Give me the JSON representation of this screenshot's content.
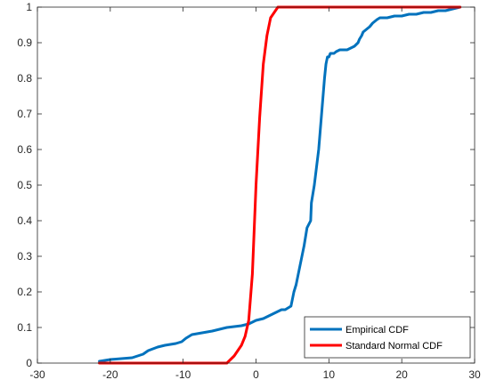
{
  "chart_data": {
    "type": "line",
    "xlim": [
      -30,
      30
    ],
    "ylim": [
      0,
      1
    ],
    "xticks": [
      -30,
      -20,
      -10,
      0,
      10,
      20,
      30
    ],
    "yticks": [
      0,
      0.1,
      0.2,
      0.3,
      0.4,
      0.5,
      0.6,
      0.7,
      0.8,
      0.9,
      1
    ],
    "grid": false,
    "legend_position": "bottom-right",
    "series": [
      {
        "name": "Empirical CDF",
        "color": "#0072BD",
        "x": [
          -21.5,
          -20,
          -17,
          -15.5,
          -14.8,
          -13.5,
          -12.5,
          -11,
          -10.2,
          -9.6,
          -9.2,
          -8.8,
          -6,
          -4,
          -2,
          -1,
          0,
          1,
          2,
          3,
          3.5,
          4,
          4.8,
          5,
          5.2,
          5.5,
          5.8,
          6,
          6.3,
          6.6,
          7,
          7.5,
          7.6,
          8,
          8.3,
          8.6,
          9,
          9.4,
          9.6,
          9.8,
          10,
          10.2,
          10.4,
          10.7,
          11,
          11.5,
          12,
          12.5,
          13,
          13.5,
          14,
          14.2,
          14.5,
          14.7,
          15,
          15.3,
          15.6,
          15.8,
          16,
          16.3,
          16.6,
          17,
          18,
          19,
          20,
          21,
          22,
          23,
          24,
          25,
          26,
          27,
          28
        ],
        "y": [
          0.005,
          0.01,
          0.015,
          0.025,
          0.035,
          0.045,
          0.05,
          0.055,
          0.06,
          0.07,
          0.075,
          0.08,
          0.09,
          0.1,
          0.105,
          0.11,
          0.12,
          0.125,
          0.135,
          0.145,
          0.15,
          0.15,
          0.16,
          0.18,
          0.2,
          0.22,
          0.25,
          0.27,
          0.3,
          0.33,
          0.38,
          0.4,
          0.45,
          0.5,
          0.55,
          0.6,
          0.7,
          0.8,
          0.84,
          0.86,
          0.86,
          0.87,
          0.87,
          0.87,
          0.875,
          0.88,
          0.88,
          0.88,
          0.885,
          0.89,
          0.9,
          0.91,
          0.92,
          0.93,
          0.935,
          0.94,
          0.945,
          0.95,
          0.955,
          0.96,
          0.965,
          0.97,
          0.97,
          0.975,
          0.975,
          0.98,
          0.98,
          0.985,
          0.985,
          0.99,
          0.99,
          0.995,
          1.0
        ]
      },
      {
        "name": "Standard Normal CDF",
        "color": "#FF0000",
        "x": [
          -21.5,
          -4,
          -3,
          -2,
          -1.5,
          -1,
          -0.5,
          0,
          0.5,
          1,
          1.5,
          2,
          2.5,
          3,
          4,
          28
        ],
        "y": [
          0,
          0,
          0.02,
          0.05,
          0.075,
          0.12,
          0.25,
          0.5,
          0.69,
          0.84,
          0.92,
          0.97,
          0.985,
          1.0,
          1.0,
          1.0
        ]
      }
    ]
  }
}
